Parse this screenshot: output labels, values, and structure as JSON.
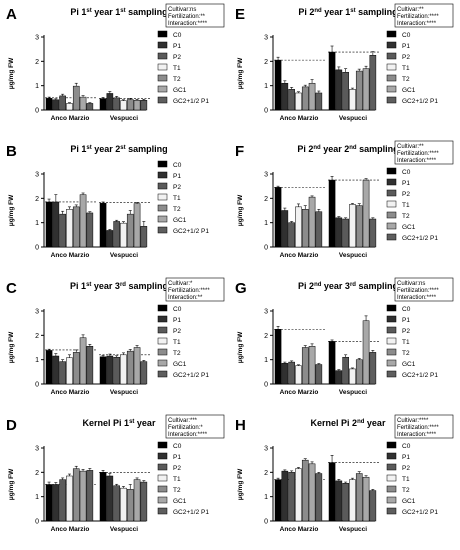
{
  "figure": {
    "treatments": [
      "C0",
      "P1",
      "P2",
      "T1",
      "T2",
      "GC1",
      "GC2+1/2 P1"
    ],
    "treatment_colors": [
      "#000000",
      "#303030",
      "#5a5a5a",
      "#f2f2f2",
      "#8c8c8c",
      "#a8a8a8",
      "#5e5e5e"
    ],
    "cultivars": [
      "Anco Marzio",
      "Vespucci"
    ],
    "ylabel": "μg/mg FW"
  },
  "chart_data": [
    {
      "type": "bar",
      "panel": "A",
      "title": {
        "pre": "Pi 1",
        "sup1": "st",
        "mid": " year 1",
        "sup2": "st",
        "post": " sampling"
      },
      "ylim": [
        0,
        3
      ],
      "yticks": [
        "0",
        "1",
        "2",
        "3"
      ],
      "stats": [
        "Cultivar:ns",
        "Fertilization:**",
        "Interaction:****"
      ],
      "reference": [
        0.5,
        0.47
      ],
      "groups": [
        {
          "name": "Anco Marzio",
          "values": [
            0.48,
            0.42,
            0.58,
            0.27,
            0.98,
            0.53,
            0.27
          ],
          "errors": [
            0.05,
            0.04,
            0.07,
            0.03,
            0.12,
            0.06,
            0.03
          ]
        },
        {
          "name": "Vespucci",
          "values": [
            0.47,
            0.68,
            0.5,
            0.38,
            0.43,
            0.4,
            0.4
          ],
          "errors": [
            0.05,
            0.08,
            0.06,
            0.04,
            0.05,
            0.04,
            0.04
          ]
        }
      ]
    },
    {
      "type": "bar",
      "panel": "B",
      "title": {
        "pre": "Pi 1",
        "sup1": "st",
        "mid": " year 2",
        "sup2": "st",
        "post": " sampling"
      },
      "ylim": [
        0,
        3
      ],
      "yticks": [
        "0",
        "1",
        "2",
        "3"
      ],
      "stats": [],
      "reference": [
        1.85,
        1.82
      ],
      "groups": [
        {
          "name": "Anco Marzio",
          "values": [
            1.85,
            1.85,
            1.35,
            1.55,
            1.65,
            2.15,
            1.4
          ],
          "errors": [
            0.12,
            0.3,
            0.12,
            0.1,
            0.08,
            0.07,
            0.05
          ]
        },
        {
          "name": "Vespucci",
          "values": [
            1.8,
            0.68,
            1.05,
            0.98,
            1.35,
            1.78,
            0.85
          ],
          "errors": [
            0.05,
            0.04,
            0.05,
            0.06,
            0.15,
            0.05,
            0.2
          ]
        }
      ]
    },
    {
      "type": "bar",
      "panel": "C",
      "title": {
        "pre": "Pi 1",
        "sup1": "st",
        "mid": " year 3",
        "sup2": "rd",
        "post": " sampling"
      },
      "ylim": [
        0,
        3
      ],
      "yticks": [
        "0",
        "1",
        "2",
        "3"
      ],
      "stats": [
        "Cultivar:*",
        "Fertilization:****",
        "Interaction:**"
      ],
      "reference": [
        1.4,
        1.2
      ],
      "groups": [
        {
          "name": "Anco Marzio",
          "values": [
            1.38,
            1.15,
            0.92,
            1.08,
            1.3,
            1.9,
            1.55
          ],
          "errors": [
            0.05,
            0.1,
            0.08,
            0.12,
            0.1,
            0.12,
            0.08
          ]
        },
        {
          "name": "Vespucci",
          "values": [
            1.12,
            1.15,
            1.1,
            1.2,
            1.35,
            1.5,
            0.92
          ],
          "errors": [
            0.05,
            0.08,
            0.06,
            0.08,
            0.07,
            0.08,
            0.05
          ]
        }
      ]
    },
    {
      "type": "bar",
      "panel": "D",
      "title": {
        "pre": "Kernel Pi 1",
        "sup1": "st",
        "mid": " year",
        "sup2": "",
        "post": ""
      },
      "ylim": [
        0,
        3
      ],
      "yticks": [
        "0",
        "1",
        "2",
        "3"
      ],
      "stats": [
        "Cultivar:***",
        "Fertilization:*",
        "Interaction:****"
      ],
      "reference": [
        1.5,
        2.0
      ],
      "groups": [
        {
          "name": "Anco Marzio",
          "values": [
            1.5,
            1.5,
            1.7,
            1.85,
            2.15,
            2.05,
            2.08
          ],
          "errors": [
            0.1,
            0.08,
            0.07,
            0.08,
            0.1,
            0.07,
            0.08
          ]
        },
        {
          "name": "Vespucci",
          "values": [
            2.0,
            1.85,
            1.45,
            1.35,
            1.3,
            1.7,
            1.6
          ],
          "errors": [
            0.08,
            0.1,
            0.06,
            0.07,
            0.2,
            0.07,
            0.06
          ]
        }
      ]
    },
    {
      "type": "bar",
      "panel": "E",
      "title": {
        "pre": "Pi 2",
        "sup1": "nd",
        "mid": " year 1",
        "sup2": "st",
        "post": " sampling"
      },
      "ylim": [
        0,
        3
      ],
      "yticks": [
        "0",
        "1",
        "2",
        "3"
      ],
      "stats": [
        "Cultivar:**",
        "Fertilization:****",
        "Interaction:****"
      ],
      "reference": [
        2.05,
        2.38
      ],
      "groups": [
        {
          "name": "Anco Marzio",
          "values": [
            2.05,
            1.1,
            0.85,
            0.7,
            0.95,
            1.1,
            0.7
          ],
          "errors": [
            0.12,
            0.1,
            0.08,
            0.05,
            0.07,
            0.15,
            0.08
          ]
        },
        {
          "name": "Vespucci",
          "values": [
            2.38,
            1.65,
            1.55,
            0.85,
            1.6,
            1.7,
            2.25
          ],
          "errors": [
            0.25,
            0.12,
            0.15,
            0.05,
            0.08,
            0.1,
            0.15
          ]
        }
      ]
    },
    {
      "type": "bar",
      "panel": "F",
      "title": {
        "pre": "Pi 2",
        "sup1": "nd",
        "mid": " year 2",
        "sup2": "nd",
        "post": " sampling"
      },
      "ylim": [
        0,
        3
      ],
      "yticks": [
        "0",
        "1",
        "2",
        "3"
      ],
      "stats": [
        "Cultivar:**",
        "Fertilization:****",
        "Interaction:****"
      ],
      "reference": [
        2.45,
        2.75
      ],
      "groups": [
        {
          "name": "Anco Marzio",
          "values": [
            2.45,
            1.5,
            1.0,
            1.65,
            1.55,
            2.05,
            1.45
          ],
          "errors": [
            0.05,
            0.1,
            0.05,
            0.12,
            0.15,
            0.05,
            0.1
          ]
        },
        {
          "name": "Vespucci",
          "values": [
            2.75,
            1.2,
            1.15,
            1.75,
            1.7,
            2.75,
            1.15
          ],
          "errors": [
            0.15,
            0.05,
            0.05,
            0.04,
            0.08,
            0.06,
            0.05
          ]
        }
      ]
    },
    {
      "type": "bar",
      "panel": "G",
      "title": {
        "pre": "Pi 2",
        "sup1": "nd",
        "mid": " year 3",
        "sup2": "rd",
        "post": " sampling"
      },
      "ylim": [
        0,
        3
      ],
      "yticks": [
        "0",
        "1",
        "2",
        "3"
      ],
      "stats": [
        "Cultivar:ns",
        "Fertilization:****",
        "Interaction:****"
      ],
      "reference": [
        2.25,
        1.75
      ],
      "groups": [
        {
          "name": "Anco Marzio",
          "values": [
            2.25,
            0.85,
            0.9,
            0.75,
            1.5,
            1.55,
            0.8
          ],
          "errors": [
            0.12,
            0.05,
            0.05,
            0.04,
            0.08,
            0.1,
            0.04
          ]
        },
        {
          "name": "Vespucci",
          "values": [
            1.75,
            0.55,
            1.1,
            0.62,
            1.0,
            2.6,
            1.3
          ],
          "errors": [
            0.06,
            0.04,
            0.1,
            0.04,
            0.05,
            0.2,
            0.08
          ]
        }
      ]
    },
    {
      "type": "bar",
      "panel": "H",
      "title": {
        "pre": "Kernel Pi 2",
        "sup1": "nd",
        "mid": " year",
        "sup2": "",
        "post": ""
      },
      "ylim": [
        0,
        3
      ],
      "yticks": [
        "0",
        "1",
        "2",
        "3"
      ],
      "stats": [
        "Cultivar:****",
        "Fertilization:****",
        "Interaction:****"
      ],
      "reference": [
        1.7,
        2.4
      ],
      "groups": [
        {
          "name": "Anco Marzio",
          "values": [
            1.7,
            2.05,
            2.0,
            2.15,
            2.5,
            2.35,
            1.95
          ],
          "errors": [
            0.06,
            0.05,
            0.06,
            0.05,
            0.06,
            0.08,
            0.05
          ]
        },
        {
          "name": "Vespucci",
          "values": [
            2.4,
            1.65,
            1.55,
            1.7,
            1.95,
            1.8,
            1.25
          ],
          "errors": [
            0.3,
            0.06,
            0.05,
            0.06,
            0.08,
            0.06,
            0.05
          ]
        }
      ]
    }
  ]
}
